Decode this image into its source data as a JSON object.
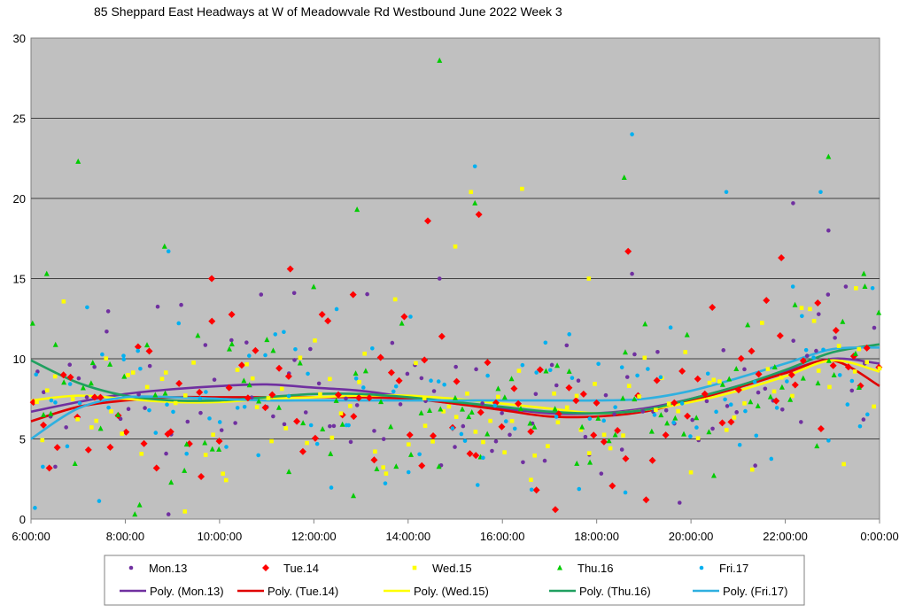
{
  "chart_data": {
    "type": "scatter",
    "title": "85 Sheppard East Headways at W of Meadowvale Rd Westbound June 2022  Week 3",
    "xlabel": "",
    "ylabel": "",
    "xlim": [
      "6:00:00",
      "0:00:00"
    ],
    "ylim": [
      0,
      30
    ],
    "x_tick_labels": [
      "6:00:00",
      "8:00:00",
      "10:00:00",
      "12:00:00",
      "14:00:00",
      "16:00:00",
      "18:00:00",
      "20:00:00",
      "22:00:00",
      "0:00:00"
    ],
    "y_tick_labels": [
      "0",
      "5",
      "10",
      "15",
      "20",
      "25",
      "30"
    ],
    "grid": "horizontal",
    "plot_background": "#c0c0c0",
    "legend_position": "bottom",
    "scatter_series": [
      {
        "name": "Mon.13",
        "color": "#7030a0",
        "marker": "circle",
        "seed": 13,
        "outliers": [
          [
            "14:40:00",
            15.0
          ],
          [
            "18:45:00",
            15.3
          ],
          [
            "22:10:00",
            19.7
          ],
          [
            "22:55:00",
            18.0
          ],
          [
            "11:35:00",
            14.1
          ],
          [
            "8:55:00",
            0.3
          ]
        ]
      },
      {
        "name": "Tue.14",
        "color": "#ff0000",
        "marker": "diamond",
        "seed": 14,
        "outliers": [
          [
            "14:25:00",
            18.6
          ],
          [
            "15:30:00",
            19.0
          ],
          [
            "11:30:00",
            15.6
          ],
          [
            "18:40:00",
            16.7
          ],
          [
            "21:55:00",
            16.3
          ],
          [
            "9:50:00",
            15.0
          ],
          [
            "12:50:00",
            14.0
          ]
        ]
      },
      {
        "name": "Wed.15",
        "color": "#ffff00",
        "marker": "square",
        "seed": 15,
        "outliers": [
          [
            "15:20:00",
            20.4
          ],
          [
            "16:25:00",
            20.6
          ],
          [
            "15:00:00",
            17.0
          ],
          [
            "17:50:00",
            15.0
          ],
          [
            "23:30:00",
            14.4
          ],
          [
            "0:00:00",
            9.4
          ]
        ]
      },
      {
        "name": "Thu.16",
        "color": "#00cc00",
        "marker": "triangle",
        "seed": 16,
        "outliers": [
          [
            "14:40:00",
            28.6
          ],
          [
            "7:00:00",
            22.3
          ],
          [
            "12:55:00",
            19.3
          ],
          [
            "15:25:00",
            19.7
          ],
          [
            "18:35:00",
            21.3
          ],
          [
            "22:55:00",
            22.6
          ],
          [
            "8:50:00",
            17.0
          ],
          [
            "6:20:00",
            15.3
          ],
          [
            "23:40:00",
            15.3
          ]
        ]
      },
      {
        "name": "Fri.17",
        "color": "#00b0f0",
        "marker": "circle",
        "seed": 17,
        "outliers": [
          [
            "18:45:00",
            24.0
          ],
          [
            "15:25:00",
            22.0
          ],
          [
            "20:45:00",
            20.4
          ],
          [
            "22:45:00",
            20.4
          ],
          [
            "8:55:00",
            16.7
          ],
          [
            "6:05:00",
            0.7
          ]
        ]
      }
    ],
    "trend_series": [
      {
        "name": "Poly. (Mon.13)",
        "color": "#7030a0",
        "x": [
          "6:00:00",
          "7:00:00",
          "8:00:00",
          "9:00:00",
          "10:00:00",
          "11:00:00",
          "12:00:00",
          "13:00:00",
          "14:00:00",
          "15:00:00",
          "16:00:00",
          "17:00:00",
          "18:00:00",
          "19:00:00",
          "20:00:00",
          "21:00:00",
          "22:00:00",
          "23:00:00",
          "0:00:00"
        ],
        "y": [
          6.7,
          7.3,
          7.8,
          8.1,
          8.3,
          8.4,
          8.2,
          8.0,
          7.6,
          7.2,
          6.9,
          6.6,
          6.6,
          6.9,
          7.5,
          8.3,
          9.2,
          10.0,
          9.7
        ]
      },
      {
        "name": "Poly. (Tue.14)",
        "color": "#e00000",
        "x": [
          "6:00:00",
          "7:00:00",
          "8:00:00",
          "9:00:00",
          "10:00:00",
          "11:00:00",
          "12:00:00",
          "13:00:00",
          "14:00:00",
          "15:00:00",
          "16:00:00",
          "17:00:00",
          "18:00:00",
          "19:00:00",
          "20:00:00",
          "21:00:00",
          "22:00:00",
          "23:00:00",
          "0:00:00"
        ],
        "y": [
          6.1,
          7.0,
          7.4,
          7.6,
          7.6,
          7.6,
          7.6,
          7.6,
          7.5,
          7.2,
          6.8,
          6.4,
          6.4,
          6.7,
          7.4,
          8.2,
          9.1,
          9.9,
          8.3
        ]
      },
      {
        "name": "Poly. (Wed.15)",
        "color": "#ffff00",
        "x": [
          "6:00:00",
          "7:00:00",
          "8:00:00",
          "9:00:00",
          "10:00:00",
          "11:00:00",
          "12:00:00",
          "13:00:00",
          "14:00:00",
          "15:00:00",
          "16:00:00",
          "17:00:00",
          "18:00:00",
          "19:00:00",
          "20:00:00",
          "21:00:00",
          "22:00:00",
          "23:00:00",
          "0:00:00"
        ],
        "y": [
          7.4,
          7.7,
          7.5,
          7.3,
          7.3,
          7.5,
          7.6,
          7.7,
          7.7,
          7.5,
          7.2,
          6.9,
          6.6,
          6.8,
          7.3,
          8.0,
          8.9,
          9.9,
          9.2
        ]
      },
      {
        "name": "Poly. (Thu.16)",
        "color": "#20a060",
        "x": [
          "6:00:00",
          "7:00:00",
          "8:00:00",
          "9:00:00",
          "10:00:00",
          "11:00:00",
          "12:00:00",
          "13:00:00",
          "14:00:00",
          "15:00:00",
          "16:00:00",
          "17:00:00",
          "18:00:00",
          "19:00:00",
          "20:00:00",
          "21:00:00",
          "22:00:00",
          "23:00:00",
          "0:00:00"
        ],
        "y": [
          9.9,
          8.5,
          7.7,
          7.4,
          7.4,
          7.6,
          7.8,
          7.8,
          7.6,
          7.3,
          7.0,
          6.7,
          6.6,
          6.8,
          7.5,
          8.3,
          9.3,
          10.4,
          10.9
        ]
      },
      {
        "name": "Poly. (Fri.17)",
        "color": "#2fb0e0",
        "x": [
          "6:00:00",
          "7:00:00",
          "8:00:00",
          "9:00:00",
          "10:00:00",
          "11:00:00",
          "12:00:00",
          "13:00:00",
          "14:00:00",
          "15:00:00",
          "16:00:00",
          "17:00:00",
          "18:00:00",
          "19:00:00",
          "20:00:00",
          "21:00:00",
          "22:00:00",
          "23:00:00",
          "0:00:00"
        ],
        "y": [
          5.0,
          6.9,
          7.6,
          7.6,
          7.5,
          7.4,
          7.4,
          7.4,
          7.4,
          7.4,
          7.4,
          7.4,
          7.4,
          7.5,
          8.0,
          8.8,
          9.7,
          10.6,
          10.7
        ]
      }
    ]
  }
}
